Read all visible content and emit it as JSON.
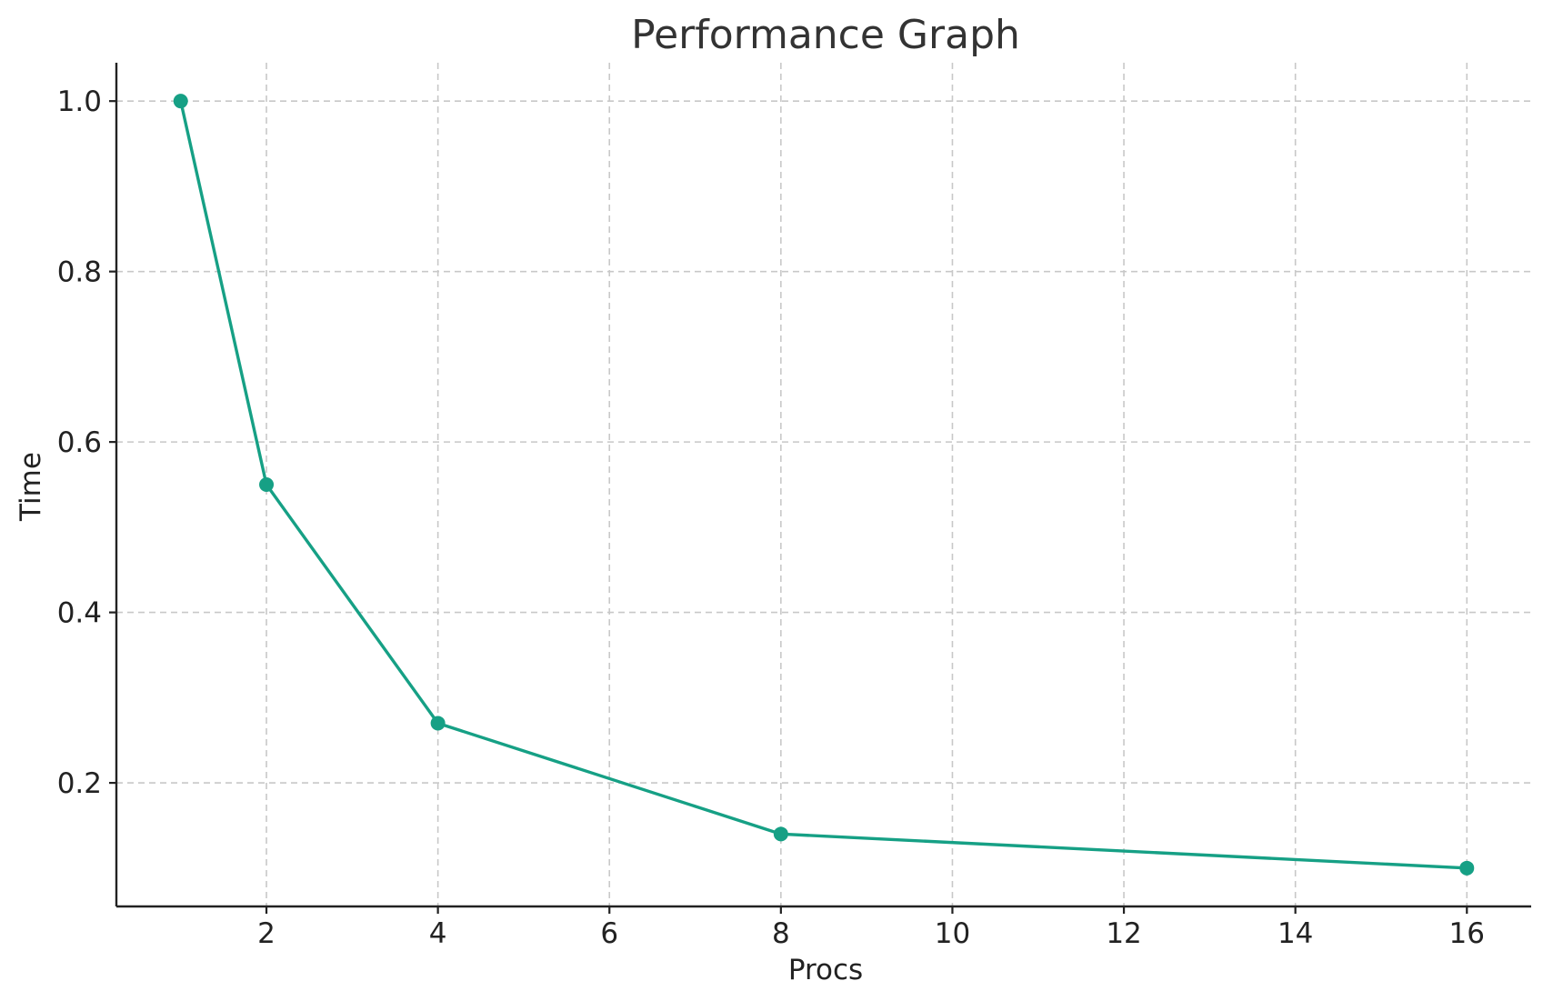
{
  "chart_data": {
    "type": "line",
    "title": "Performance Graph",
    "xlabel": "Procs",
    "ylabel": "Time",
    "xlim": [
      0.25,
      16.75
    ],
    "ylim": [
      0.055,
      1.045
    ],
    "xticks": [
      2,
      4,
      6,
      8,
      10,
      12,
      14,
      16
    ],
    "xtick_labels": [
      "2",
      "4",
      "6",
      "8",
      "10",
      "12",
      "14",
      "16"
    ],
    "yticks": [
      0.2,
      0.4,
      0.6,
      0.8,
      1.0
    ],
    "ytick_labels": [
      "0.2",
      "0.4",
      "0.6",
      "0.8",
      "1.0"
    ],
    "grid": true,
    "series": [
      {
        "x": [
          1,
          2,
          4,
          8,
          16
        ],
        "values": [
          1.0,
          0.55,
          0.27,
          0.14,
          0.1
        ],
        "color": "#16a085",
        "marker": "circle"
      }
    ]
  }
}
